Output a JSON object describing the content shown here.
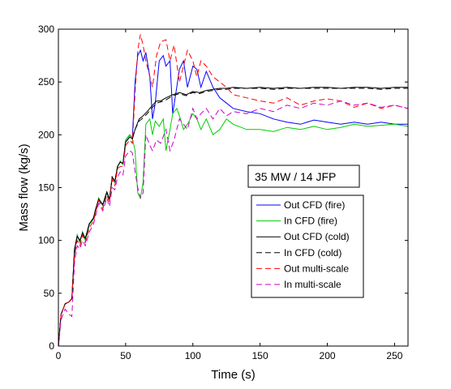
{
  "chart_data": {
    "type": "line",
    "xlabel": "Time (s)",
    "ylabel": "Mass flow (kg/s)",
    "xlim": [
      0,
      260
    ],
    "ylim": [
      0,
      300
    ],
    "xticks": [
      0,
      50,
      100,
      150,
      200,
      250
    ],
    "yticks": [
      0,
      50,
      100,
      150,
      200,
      250,
      300
    ],
    "grid": false,
    "legend_position": "center-right",
    "annotation": "35 MW / 14 JFP",
    "series": [
      {
        "name": "Out CFD (fire)",
        "color": "#0000ff",
        "dash": "solid",
        "x": [
          0,
          2,
          5,
          8,
          10,
          12,
          14,
          16,
          18,
          20,
          23,
          26,
          28,
          30,
          33,
          36,
          38,
          40,
          42,
          44,
          46,
          48,
          50,
          53,
          55,
          57,
          59,
          61,
          63,
          65,
          68,
          70,
          72,
          75,
          78,
          80,
          83,
          85,
          88,
          90,
          93,
          96,
          100,
          103,
          106,
          110,
          115,
          120,
          125,
          130,
          140,
          150,
          160,
          170,
          180,
          190,
          200,
          210,
          220,
          230,
          240,
          250,
          260
        ],
        "y": [
          0,
          30,
          40,
          42,
          45,
          90,
          105,
          98,
          108,
          100,
          115,
          120,
          130,
          140,
          133,
          145,
          138,
          160,
          155,
          170,
          175,
          172,
          195,
          200,
          197,
          250,
          275,
          280,
          270,
          278,
          255,
          215,
          230,
          270,
          275,
          265,
          270,
          220,
          245,
          262,
          270,
          245,
          265,
          262,
          245,
          260,
          245,
          235,
          230,
          225,
          222,
          220,
          215,
          212,
          210,
          214,
          212,
          210,
          212,
          210,
          212,
          210,
          210
        ]
      },
      {
        "name": "In CFD (fire)",
        "color": "#00cc00",
        "dash": "solid",
        "x": [
          0,
          2,
          5,
          8,
          10,
          12,
          14,
          16,
          18,
          20,
          23,
          26,
          28,
          30,
          33,
          36,
          38,
          40,
          42,
          44,
          46,
          48,
          50,
          53,
          55,
          57,
          59,
          61,
          63,
          65,
          68,
          70,
          72,
          75,
          78,
          80,
          83,
          85,
          88,
          90,
          93,
          96,
          100,
          103,
          106,
          110,
          115,
          120,
          125,
          130,
          140,
          150,
          160,
          170,
          180,
          190,
          200,
          210,
          220,
          230,
          240,
          250,
          260
        ],
        "y": [
          0,
          30,
          40,
          42,
          45,
          90,
          105,
          98,
          108,
          100,
          115,
          120,
          130,
          140,
          133,
          145,
          138,
          160,
          155,
          170,
          175,
          172,
          195,
          200,
          197,
          185,
          145,
          140,
          155,
          210,
          215,
          200,
          213,
          208,
          215,
          185,
          205,
          220,
          225,
          218,
          205,
          210,
          220,
          215,
          205,
          215,
          200,
          205,
          215,
          210,
          205,
          205,
          203,
          207,
          205,
          208,
          205,
          207,
          210,
          208,
          209,
          210,
          208
        ]
      },
      {
        "name": "Out CFD (cold)",
        "color": "#000000",
        "dash": "solid",
        "x": [
          0,
          2,
          5,
          8,
          10,
          12,
          14,
          16,
          18,
          20,
          23,
          26,
          28,
          30,
          33,
          36,
          38,
          40,
          42,
          44,
          46,
          48,
          50,
          53,
          55,
          57,
          60,
          63,
          66,
          70,
          73,
          76,
          80,
          85,
          90,
          95,
          100,
          105,
          110,
          115,
          120,
          125,
          130,
          140,
          150,
          160,
          170,
          180,
          190,
          200,
          210,
          220,
          230,
          240,
          250,
          260
        ],
        "y": [
          0,
          30,
          40,
          42,
          45,
          92,
          104,
          100,
          107,
          102,
          116,
          121,
          131,
          139,
          134,
          146,
          139,
          160,
          156,
          170,
          174,
          173,
          193,
          198,
          196,
          205,
          215,
          218,
          222,
          228,
          232,
          232,
          235,
          238,
          240,
          238,
          241,
          240,
          242,
          243,
          244,
          244,
          245,
          244,
          245,
          244,
          245,
          244,
          245,
          245,
          244,
          245,
          245,
          244,
          245,
          245
        ]
      },
      {
        "name": "In CFD (cold)",
        "color": "#000000",
        "dash": "dashed",
        "x": [
          0,
          2,
          5,
          8,
          10,
          12,
          14,
          16,
          18,
          20,
          23,
          26,
          28,
          30,
          33,
          36,
          38,
          40,
          42,
          44,
          46,
          48,
          50,
          53,
          55,
          57,
          60,
          63,
          66,
          70,
          73,
          76,
          80,
          85,
          90,
          95,
          100,
          105,
          110,
          115,
          120,
          125,
          130,
          140,
          150,
          160,
          170,
          180,
          190,
          200,
          210,
          220,
          230,
          240,
          250,
          260
        ],
        "y": [
          0,
          30,
          40,
          42,
          45,
          92,
          104,
          100,
          107,
          102,
          116,
          121,
          131,
          139,
          134,
          146,
          139,
          160,
          156,
          170,
          174,
          173,
          193,
          198,
          196,
          205,
          213,
          216,
          220,
          226,
          230,
          231,
          233,
          237,
          239,
          237,
          240,
          239,
          241,
          242,
          243,
          243,
          244,
          244,
          244,
          243,
          244,
          244,
          244,
          244,
          244,
          244,
          244,
          243,
          244,
          244
        ]
      },
      {
        "name": "Out multi-scale",
        "color": "#ff0000",
        "dash": "dashed",
        "x": [
          0,
          2,
          5,
          8,
          10,
          12,
          14,
          16,
          18,
          20,
          23,
          26,
          28,
          30,
          33,
          36,
          38,
          40,
          42,
          44,
          46,
          48,
          50,
          53,
          55,
          57,
          59,
          61,
          63,
          65,
          68,
          70,
          73,
          76,
          80,
          83,
          86,
          90,
          93,
          96,
          100,
          103,
          106,
          110,
          115,
          120,
          125,
          130,
          140,
          150,
          160,
          170,
          180,
          190,
          200,
          210,
          220,
          230,
          240,
          250,
          260
        ],
        "y": [
          0,
          30,
          40,
          42,
          45,
          85,
          100,
          95,
          105,
          98,
          112,
          118,
          128,
          138,
          130,
          143,
          136,
          158,
          152,
          168,
          170,
          170,
          190,
          195,
          192,
          240,
          280,
          295,
          285,
          270,
          255,
          245,
          275,
          288,
          290,
          270,
          285,
          250,
          265,
          280,
          270,
          255,
          270,
          265,
          255,
          250,
          245,
          238,
          235,
          232,
          230,
          235,
          228,
          232,
          234,
          232,
          226,
          230,
          225,
          228,
          225
        ]
      },
      {
        "name": "In multi-scale",
        "color": "#cc00cc",
        "dash": "dashed",
        "x": [
          0,
          2,
          5,
          8,
          10,
          12,
          14,
          16,
          18,
          20,
          23,
          26,
          28,
          30,
          33,
          36,
          38,
          40,
          42,
          44,
          46,
          48,
          50,
          53,
          55,
          57,
          59,
          61,
          63,
          65,
          68,
          70,
          73,
          76,
          80,
          83,
          86,
          90,
          93,
          96,
          100,
          103,
          106,
          110,
          115,
          120,
          125,
          130,
          140,
          150,
          160,
          170,
          180,
          190,
          200,
          210,
          220,
          230,
          240,
          250,
          260
        ],
        "y": [
          0,
          25,
          35,
          30,
          28,
          80,
          95,
          92,
          100,
          95,
          108,
          115,
          125,
          135,
          128,
          140,
          132,
          150,
          148,
          160,
          165,
          162,
          180,
          185,
          183,
          165,
          150,
          140,
          145,
          200,
          190,
          185,
          195,
          192,
          205,
          185,
          195,
          215,
          210,
          205,
          225,
          215,
          220,
          225,
          215,
          225,
          218,
          222,
          220,
          225,
          222,
          228,
          225,
          230,
          228,
          232,
          228,
          230,
          226,
          228,
          225
        ]
      }
    ]
  }
}
